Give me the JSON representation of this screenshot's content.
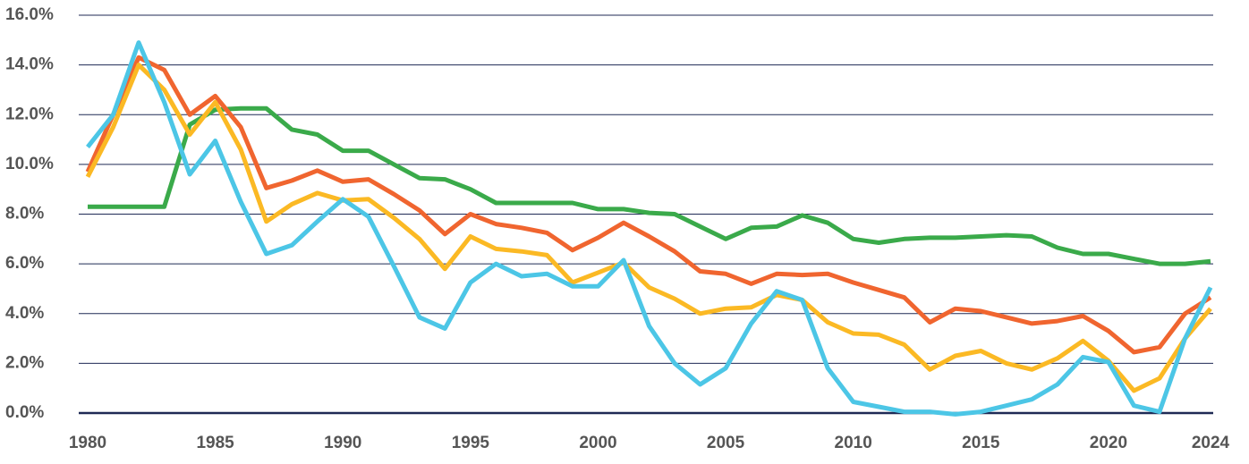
{
  "chart_data": {
    "type": "line",
    "x": [
      1980,
      1981,
      1982,
      1983,
      1984,
      1985,
      1986,
      1987,
      1988,
      1989,
      1990,
      1991,
      1992,
      1993,
      1994,
      1995,
      1996,
      1997,
      1998,
      1999,
      2000,
      2001,
      2002,
      2003,
      2004,
      2005,
      2006,
      2007,
      2008,
      2009,
      2010,
      2011,
      2012,
      2013,
      2014,
      2015,
      2016,
      2017,
      2018,
      2019,
      2020,
      2021,
      2022,
      2023,
      2024
    ],
    "xlim": [
      1980,
      2024
    ],
    "xticks": [
      1980,
      1985,
      1990,
      1995,
      2000,
      2005,
      2010,
      2015,
      2020,
      2024
    ],
    "ylim": [
      0,
      16
    ],
    "yticks": [
      {
        "value": 0,
        "label": "0.0%"
      },
      {
        "value": 2,
        "label": "2.0%"
      },
      {
        "value": 4,
        "label": "4.0%"
      },
      {
        "value": 6,
        "label": "6.0%"
      },
      {
        "value": 8,
        "label": "8.0%"
      },
      {
        "value": 10,
        "label": "10.0%"
      },
      {
        "value": 12,
        "label": "12.0%"
      },
      {
        "value": 14,
        "label": "14.0%"
      },
      {
        "value": 16,
        "label": "16.0%"
      }
    ],
    "grid": true,
    "series": [
      {
        "color": "#3aaa4a",
        "values": [
          8.3,
          8.3,
          8.3,
          8.3,
          11.6,
          12.2,
          12.25,
          12.25,
          11.4,
          11.2,
          10.55,
          10.55,
          10.0,
          9.45,
          9.4,
          9.0,
          8.45,
          8.45,
          8.45,
          8.45,
          8.2,
          8.2,
          8.05,
          8.0,
          7.5,
          7.0,
          7.45,
          7.5,
          7.95,
          7.65,
          7.0,
          6.85,
          7.0,
          7.05,
          7.05,
          7.1,
          7.15,
          7.1,
          6.65,
          6.4,
          6.4,
          6.2,
          6.0,
          6.0,
          6.1
        ]
      },
      {
        "color": "#f0652f",
        "values": [
          9.7,
          12.0,
          14.3,
          13.8,
          12.0,
          12.75,
          11.5,
          9.05,
          9.35,
          9.75,
          9.3,
          9.4,
          8.8,
          8.15,
          7.2,
          8.0,
          7.6,
          7.45,
          7.25,
          6.55,
          7.05,
          7.65,
          7.1,
          6.5,
          5.7,
          5.6,
          5.2,
          5.6,
          5.55,
          5.6,
          5.25,
          4.95,
          4.65,
          3.65,
          4.2,
          4.1,
          3.85,
          3.6,
          3.7,
          3.9,
          3.3,
          2.45,
          2.65,
          4.0,
          4.65
        ]
      },
      {
        "color": "#fbb924",
        "values": [
          9.5,
          11.5,
          14.0,
          13.0,
          11.2,
          12.5,
          10.6,
          7.7,
          8.4,
          8.85,
          8.55,
          8.6,
          7.85,
          7.0,
          5.8,
          7.1,
          6.6,
          6.5,
          6.35,
          5.25,
          5.65,
          6.05,
          5.05,
          4.6,
          4.0,
          4.2,
          4.25,
          4.75,
          4.55,
          3.65,
          3.2,
          3.15,
          2.75,
          1.75,
          2.3,
          2.5,
          2.0,
          1.75,
          2.2,
          2.9,
          2.1,
          0.9,
          1.4,
          3.0,
          4.2
        ]
      },
      {
        "color": "#4cc6e6",
        "values": [
          10.7,
          12.0,
          14.9,
          12.5,
          9.6,
          10.95,
          8.5,
          6.4,
          6.75,
          7.7,
          8.6,
          7.9,
          5.9,
          3.85,
          3.4,
          5.25,
          6.0,
          5.5,
          5.6,
          5.1,
          5.1,
          6.15,
          3.5,
          2.0,
          1.15,
          1.8,
          3.6,
          4.9,
          4.55,
          1.8,
          0.45,
          0.25,
          0.05,
          0.05,
          -0.05,
          0.05,
          0.3,
          0.55,
          1.15,
          2.25,
          2.05,
          0.3,
          0.05,
          3.0,
          5.05
        ]
      }
    ]
  }
}
